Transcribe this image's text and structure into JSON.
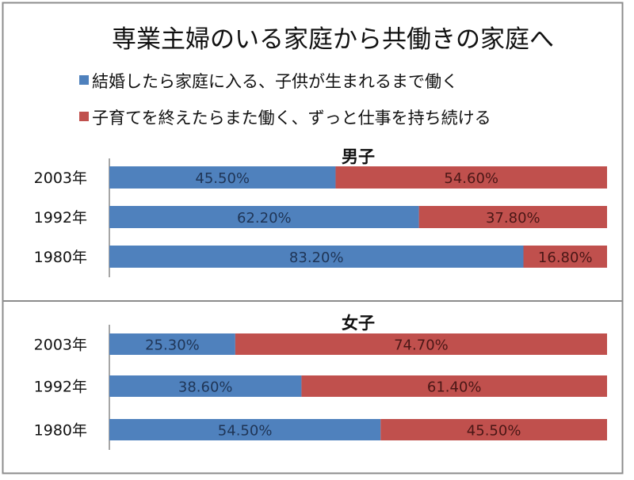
{
  "chart_data": {
    "type": "bar",
    "stacked": true,
    "orientation": "horizontal",
    "title": "専業主婦のいる家庭から共働きの家庭へ",
    "legend_position": "top",
    "series_names": [
      "結婚したら家庭に入る、子供が生まれるまで働く",
      "子育てを終えたらまた働く、ずっと仕事を持ち続ける"
    ],
    "colors": [
      "#4f81bd",
      "#c0504d"
    ],
    "panels": [
      {
        "title": "男子",
        "categories": [
          "2003年",
          "1992年",
          "1980年"
        ],
        "series": [
          {
            "name": "結婚したら家庭に入る、子供が生まれるまで働く",
            "values": [
              45.5,
              62.2,
              83.2
            ],
            "labels": [
              "45.50%",
              "62.20%",
              "83.20%"
            ]
          },
          {
            "name": "子育てを終えたらまた働く、ずっと仕事を持ち続ける",
            "values": [
              54.6,
              37.8,
              16.8
            ],
            "labels": [
              "54.60%",
              "37.80%",
              "16.80%"
            ]
          }
        ]
      },
      {
        "title": "女子",
        "categories": [
          "2003年",
          "1992年",
          "1980年"
        ],
        "series": [
          {
            "name": "結婚したら家庭に入る、子供が生まれるまで働く",
            "values": [
              25.3,
              38.6,
              54.5
            ],
            "labels": [
              "25.30%",
              "38.60%",
              "54.50%"
            ]
          },
          {
            "name": "子育てを終えたらまた働く、ずっと仕事を持ち続ける",
            "values": [
              74.7,
              61.4,
              45.5
            ],
            "labels": [
              "74.70%",
              "61.40%",
              "45.50%"
            ]
          }
        ]
      }
    ]
  }
}
